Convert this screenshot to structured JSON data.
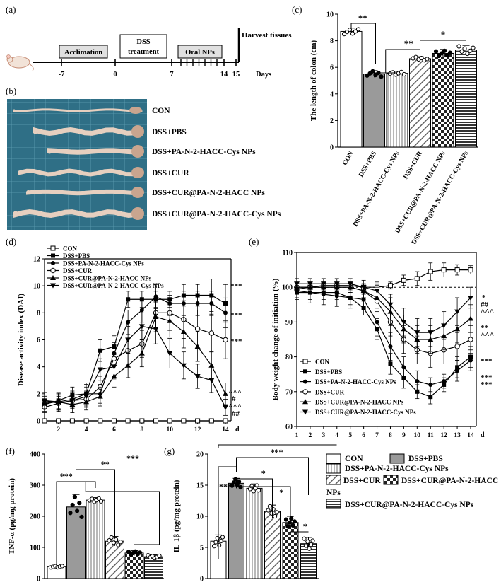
{
  "panels": {
    "a": "(a)",
    "b": "(b)",
    "c": "(c)",
    "d": "(d)",
    "e": "(e)",
    "f": "(f)",
    "g": "(g)"
  },
  "timeline": {
    "phases": [
      "Acclimation",
      "DSS treatment",
      "Oral NPs"
    ],
    "dss_line1": "DSS",
    "dss_line2": "treatment",
    "harvest": "Harvest tissues",
    "ticks": [
      "-7",
      "0",
      "7",
      "14",
      "15"
    ],
    "unit": "Days"
  },
  "photo": {
    "labels": [
      "CON",
      "DSS+PBS",
      "DSS+PA-N-2-HACC-Cys NPs",
      "DSS+CUR",
      "DSS+CUR@PA-N-2-HACC NPs",
      "DSS+CUR@PA-N-2-HACC-Cys NPs"
    ],
    "colors": {
      "background": "#2f6f86",
      "grid": "#5f9fb3",
      "colon": "#e6cfbf",
      "colon_dark": "#c9a58f"
    }
  },
  "groups": [
    "CON",
    "DSS+PBS",
    "DSS+PA-N-2-HACC-Cys NPs",
    "DSS+CUR",
    "DSS+CUR@PA-N-2-HACC NPs",
    "DSS+CUR@PA-N-2-HACC-Cys NPs"
  ],
  "legend_bottom": {
    "items": [
      "CON",
      "DSS+PBS",
      "DSS+PA-N-2-HACC-Cys NPs",
      "DSS+CUR",
      "DSS+CUR@PA-N-2-HACC",
      "NPs",
      "DSS+CUR@PA-N-2-HACC-Cys NPs"
    ]
  },
  "chart_data": [
    {
      "id": "c",
      "type": "bar",
      "title": "",
      "ylabel": "The length of colon (cm)",
      "ylim": [
        0,
        10
      ],
      "yticks": [
        0,
        2,
        4,
        6,
        8,
        10
      ],
      "categories": [
        "CON",
        "DSS+PBS",
        "DSS+PA-N-2-HACC-Cys NPs",
        "DSS+CUR",
        "DSS+CUR@PA-N-2-HACC NPs",
        "DSS+CUR@PA-N-2-HACC-Cys NPs"
      ],
      "values": [
        8.7,
        5.5,
        5.55,
        6.65,
        7.05,
        7.3
      ],
      "errors": [
        0.25,
        0.25,
        0.15,
        0.15,
        0.3,
        0.35
      ],
      "significance": [
        "**",
        "**",
        "*"
      ]
    },
    {
      "id": "d",
      "type": "line",
      "ylabel": "Disease activity index (DAI)",
      "xlabel": "d",
      "x": [
        1,
        2,
        3,
        4,
        5,
        6,
        7,
        8,
        9,
        10,
        11,
        12,
        13,
        14
      ],
      "xticks": [
        2,
        4,
        6,
        8,
        10,
        12,
        14
      ],
      "ylim": [
        0,
        12
      ],
      "yticks": [
        0,
        2,
        4,
        6,
        8,
        10,
        12
      ],
      "series": [
        {
          "name": "CON",
          "values": [
            0,
            0,
            0,
            0,
            0,
            0,
            0,
            0,
            0,
            0,
            0,
            0,
            0,
            0
          ],
          "errors": [
            0,
            0,
            0,
            0,
            0,
            0,
            0,
            0,
            0,
            0,
            0,
            0,
            0,
            0
          ]
        },
        {
          "name": "DSS+PBS",
          "values": [
            1.2,
            1.5,
            1.9,
            2.0,
            5.2,
            5.5,
            9.0,
            9.0,
            9.0,
            9.0,
            9.3,
            9.3,
            9.3,
            8.7
          ],
          "errors": [
            0.6,
            0.6,
            0.6,
            0.8,
            0.8,
            0.8,
            0.6,
            0.6,
            0.6,
            0.6,
            0.8,
            0.8,
            1.2,
            1.4
          ]
        },
        {
          "name": "DSS+PA-N-2-HACC-Cys NPs",
          "values": [
            1.5,
            1.4,
            1.6,
            2.0,
            2.0,
            5.0,
            7.3,
            8.2,
            9.2,
            8.7,
            8.7,
            8.7,
            8.7,
            8.0
          ],
          "errors": [
            0.6,
            0.6,
            0.6,
            0.7,
            0.7,
            0.8,
            0.9,
            0.9,
            0.9,
            0.9,
            0.9,
            0.9,
            0.9,
            1.1
          ]
        },
        {
          "name": "DSS+CUR",
          "values": [
            1.0,
            1.3,
            1.5,
            1.6,
            2.5,
            4.6,
            5.2,
            5.7,
            8.0,
            8.0,
            7.5,
            6.8,
            6.5,
            6.0
          ],
          "errors": [
            0.5,
            0.5,
            0.6,
            0.6,
            0.8,
            0.9,
            1.0,
            1.0,
            1.1,
            1.3,
            1.4,
            1.4,
            1.4,
            1.4
          ]
        },
        {
          "name": "DSS+CUR@PA-N-2-HACC NPs",
          "values": [
            1.3,
            1.4,
            1.2,
            1.4,
            1.8,
            3.3,
            4.1,
            5.0,
            7.7,
            7.4,
            6.6,
            5.5,
            4.1,
            2.0
          ],
          "errors": [
            0.6,
            0.6,
            0.6,
            0.6,
            0.7,
            0.8,
            0.9,
            1.0,
            1.1,
            1.2,
            1.2,
            1.1,
            1.0,
            0.8
          ]
        },
        {
          "name": "DSS+CUR@PA-N-2-HACC-Cys NPs",
          "values": [
            1.5,
            1.3,
            1.5,
            1.8,
            3.8,
            4.0,
            6.0,
            7.0,
            6.8,
            5.0,
            4.1,
            3.3,
            3.0,
            1.0
          ],
          "errors": [
            0.6,
            0.6,
            0.6,
            0.7,
            0.8,
            0.9,
            1.0,
            1.0,
            1.1,
            1.1,
            1.0,
            0.9,
            0.9,
            0.6
          ]
        }
      ],
      "annotations": [
        "***",
        "***",
        "***",
        "^^^",
        "#",
        "^^^",
        "##"
      ]
    },
    {
      "id": "e",
      "type": "line",
      "ylabel": "Body weight change of initiation (%)",
      "xlabel": "d",
      "x": [
        1,
        2,
        3,
        4,
        5,
        6,
        7,
        8,
        9,
        10,
        11,
        12,
        13,
        14
      ],
      "xticks": [
        1,
        2,
        3,
        4,
        5,
        6,
        7,
        8,
        9,
        10,
        11,
        12,
        13,
        14
      ],
      "ylim": [
        60,
        110
      ],
      "yticks": [
        60,
        70,
        80,
        90,
        100,
        110
      ],
      "reference_line": 100,
      "series": [
        {
          "name": "CON",
          "values": [
            99.5,
            100,
            100.5,
            100.5,
            100.5,
            100,
            100,
            100.5,
            102,
            102.5,
            104.5,
            105,
            105,
            105
          ],
          "errors": [
            1,
            1,
            1,
            1,
            1,
            1,
            1,
            1,
            1.5,
            2,
            2.5,
            2,
            1.5,
            1.2
          ]
        },
        {
          "name": "DSS+PBS",
          "values": [
            98.5,
            98.5,
            98.5,
            98.5,
            97,
            94,
            88,
            78,
            74,
            70,
            68.5,
            72,
            77,
            80
          ],
          "errors": [
            2,
            2,
            2,
            2,
            2,
            2,
            3,
            3,
            3,
            2,
            2,
            2,
            3,
            3
          ]
        },
        {
          "name": "DSS+PA-N-2-HACC-Cys NPs",
          "values": [
            99,
            98.5,
            98,
            97.5,
            97,
            96.5,
            90,
            83,
            77,
            73,
            72,
            73,
            76,
            79
          ],
          "errors": [
            2,
            3,
            3,
            3,
            3,
            3,
            4,
            4,
            3,
            3,
            2,
            2,
            3,
            3
          ]
        },
        {
          "name": "DSS+CUR",
          "values": [
            100,
            100,
            100,
            100,
            100,
            99,
            96,
            90,
            85,
            82,
            81,
            82,
            83,
            85
          ],
          "errors": [
            1.5,
            1.5,
            1.5,
            1.5,
            1.5,
            2,
            3,
            4,
            4,
            4,
            4,
            4,
            4,
            4
          ]
        },
        {
          "name": "DSS+CUR@PA-N-2-HACC NPs",
          "values": [
            100,
            100,
            100,
            100,
            100,
            99,
            97,
            93,
            88,
            85,
            85,
            86,
            88,
            91
          ],
          "errors": [
            1.5,
            1.5,
            1.5,
            1.5,
            1.5,
            2,
            3,
            4,
            4,
            4,
            4,
            4,
            4,
            4
          ]
        },
        {
          "name": "DSS+CUR@PA-N-2-HACC-Cys NPs",
          "values": [
            101,
            101,
            101,
            101,
            101,
            100,
            99,
            95,
            90,
            87,
            87,
            89,
            93,
            97
          ],
          "errors": [
            1.5,
            1.5,
            1.5,
            1.5,
            1.5,
            2,
            2.5,
            3,
            4,
            4,
            4,
            4,
            4,
            3
          ]
        }
      ],
      "annotations": [
        "*",
        "##",
        "^^^",
        "**",
        "^^^",
        "***",
        "***",
        "***"
      ]
    },
    {
      "id": "f",
      "type": "bar",
      "ylabel": "TNF-α (pg/mg protein)",
      "ylim": [
        0,
        400
      ],
      "yticks": [
        0,
        100,
        200,
        300,
        400
      ],
      "categories": [
        "CON",
        "DSS+PBS",
        "DSS+PA-N-2-HACC-Cys NPs",
        "DSS+CUR",
        "DSS+CUR@PA-N-2-HACC NPs",
        "DSS+CUR@PA-N-2-HACC-Cys NPs"
      ],
      "values": [
        38,
        230,
        252,
        120,
        82,
        70
      ],
      "errors": [
        3,
        40,
        8,
        15,
        8,
        6
      ],
      "significance": [
        "***",
        "**",
        "***"
      ]
    },
    {
      "id": "g",
      "type": "bar",
      "ylabel": "IL-1β (pg/mg protein)",
      "ylim": [
        0,
        20
      ],
      "yticks": [
        0,
        5,
        10,
        15,
        20
      ],
      "categories": [
        "CON",
        "DSS+PBS",
        "DSS+PA-N-2-HACC-Cys NPs",
        "DSS+CUR",
        "DSS+CUR@PA-N-2-HACC NPs",
        "DSS+CUR@PA-N-2-HACC-Cys NPs"
      ],
      "values": [
        6.0,
        15.3,
        14.5,
        10.8,
        9.0,
        5.6
      ],
      "errors": [
        1.0,
        0.8,
        0.7,
        1.0,
        1.0,
        1.0
      ],
      "significance": [
        "***",
        "***",
        "*",
        "*",
        "*"
      ]
    }
  ]
}
